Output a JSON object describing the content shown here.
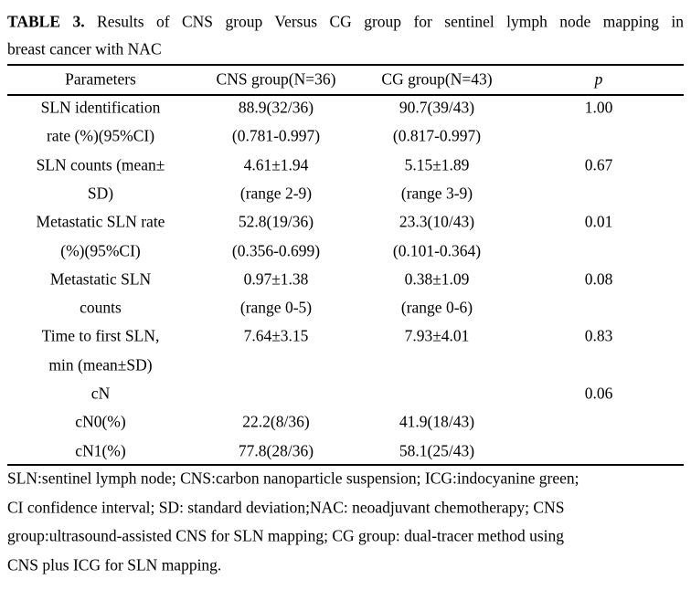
{
  "header": {
    "label": "TABLE 3.",
    "lines": [
      "Results of CNS group Versus CG group for sentinel lymph node mapping in",
      "breast cancer with NAC"
    ]
  },
  "table": {
    "columns": [
      "Parameters",
      "CNS group(N=36)",
      "CG group(N=43)",
      "p"
    ],
    "rows": [
      [
        [
          "SLN identification",
          "rate (%)(95%CI)"
        ],
        [
          "88.9(32/36)",
          "(0.781-0.997)"
        ],
        [
          "90.7(39/43)",
          "(0.817-0.997)"
        ],
        [
          "1.00"
        ]
      ],
      [
        [
          "SLN counts (mean±",
          "SD)"
        ],
        [
          "4.61±1.94",
          "(range 2-9)"
        ],
        [
          "5.15±1.89",
          "(range 3-9)"
        ],
        [
          "0.67"
        ]
      ],
      [
        [
          "Metastatic SLN rate",
          "(%)(95%CI)"
        ],
        [
          "52.8(19/36)",
          "(0.356-0.699)"
        ],
        [
          "23.3(10/43)",
          "(0.101-0.364)"
        ],
        [
          "0.01"
        ]
      ],
      [
        [
          "Metastatic SLN",
          "counts"
        ],
        [
          "0.97±1.38",
          "(range 0-5)"
        ],
        [
          "0.38±1.09",
          "(range 0-6)"
        ],
        [
          "0.08"
        ]
      ],
      [
        [
          "Time to first SLN,",
          "min (mean±SD)"
        ],
        [
          "7.64±3.15"
        ],
        [
          "7.93±4.01"
        ],
        [
          "0.83"
        ]
      ],
      [
        [
          "cN"
        ],
        [],
        [],
        [
          "0.06"
        ]
      ],
      [
        [
          "cN0(%)"
        ],
        [
          "22.2(8/36)"
        ],
        [
          "41.9(18/43)"
        ],
        []
      ],
      [
        [
          "cN1(%)"
        ],
        [
          "77.8(28/36)"
        ],
        [
          "58.1(25/43)"
        ],
        []
      ]
    ]
  },
  "footnote": {
    "lines": [
      "SLN:sentinel lymph node; CNS:carbon nanoparticle suspension; ICG:indocyanine green;",
      "CI confidence interval; SD: standard deviation;NAC: neoadjuvant chemotherapy; CNS",
      "group:ultrasound-assisted CNS for SLN mapping; CG group: dual-tracer method using",
      "CNS plus ICG for SLN mapping."
    ]
  }
}
